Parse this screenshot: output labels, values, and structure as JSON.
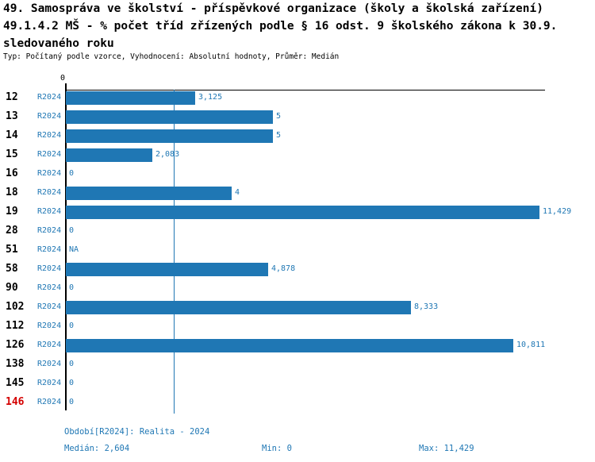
{
  "title": {
    "line1": "49. Samospráva ve školství - příspěvkové organizace (školy a školská zařízení)",
    "line2": "49.1.4.2 MŠ - % počet tříd zřízených podle § 16 odst. 9 školského zákona k 30.9.",
    "line3": "sledovaného roku",
    "meta": "Typ: Počítaný podle vzorce, Vyhodnocení: Absolutní hodnoty, Průměr: Medián"
  },
  "chart_data": {
    "type": "bar",
    "orientation": "horizontal",
    "axis": {
      "tick0": "0",
      "xlim": [
        0,
        11.5
      ],
      "grid": false
    },
    "median": 2.604,
    "min": 0,
    "max": 11.429,
    "highlighted_category": "146",
    "categories": [
      "12",
      "13",
      "14",
      "15",
      "16",
      "18",
      "19",
      "28",
      "51",
      "58",
      "90",
      "102",
      "112",
      "126",
      "138",
      "145",
      "146"
    ],
    "rows": [
      {
        "id": "12",
        "period": "R2024",
        "value": 3.125,
        "label": "3,125",
        "highlight": false
      },
      {
        "id": "13",
        "period": "R2024",
        "value": 5,
        "label": "5",
        "highlight": false
      },
      {
        "id": "14",
        "period": "R2024",
        "value": 5,
        "label": "5",
        "highlight": false
      },
      {
        "id": "15",
        "period": "R2024",
        "value": 2.083,
        "label": "2,083",
        "highlight": false
      },
      {
        "id": "16",
        "period": "R2024",
        "value": 0,
        "label": "0",
        "highlight": false
      },
      {
        "id": "18",
        "period": "R2024",
        "value": 4,
        "label": "4",
        "highlight": false
      },
      {
        "id": "19",
        "period": "R2024",
        "value": 11.429,
        "label": "11,429",
        "highlight": false
      },
      {
        "id": "28",
        "period": "R2024",
        "value": 0,
        "label": "0",
        "highlight": false
      },
      {
        "id": "51",
        "period": "R2024",
        "value": null,
        "label": "NA",
        "highlight": false
      },
      {
        "id": "58",
        "period": "R2024",
        "value": 4.878,
        "label": "4,878",
        "highlight": false
      },
      {
        "id": "90",
        "period": "R2024",
        "value": 0,
        "label": "0",
        "highlight": false
      },
      {
        "id": "102",
        "period": "R2024",
        "value": 8.333,
        "label": "8,333",
        "highlight": false
      },
      {
        "id": "112",
        "period": "R2024",
        "value": 0,
        "label": "0",
        "highlight": false
      },
      {
        "id": "126",
        "period": "R2024",
        "value": 10.811,
        "label": "10,811",
        "highlight": false
      },
      {
        "id": "138",
        "period": "R2024",
        "value": 0,
        "label": "0",
        "highlight": false
      },
      {
        "id": "145",
        "period": "R2024",
        "value": 0,
        "label": "0",
        "highlight": false
      },
      {
        "id": "146",
        "period": "R2024",
        "value": 0,
        "label": "0",
        "highlight": true
      }
    ],
    "colors": {
      "bar": "#1F77B4",
      "median_line": "#1F77B4",
      "highlight": "#D40000",
      "axis": "#000000"
    }
  },
  "footer": {
    "period": "Období[R2024]: Realita - 2024",
    "median": "Medián: 2,604",
    "min": "Min: 0",
    "max": "Max: 11,429"
  }
}
